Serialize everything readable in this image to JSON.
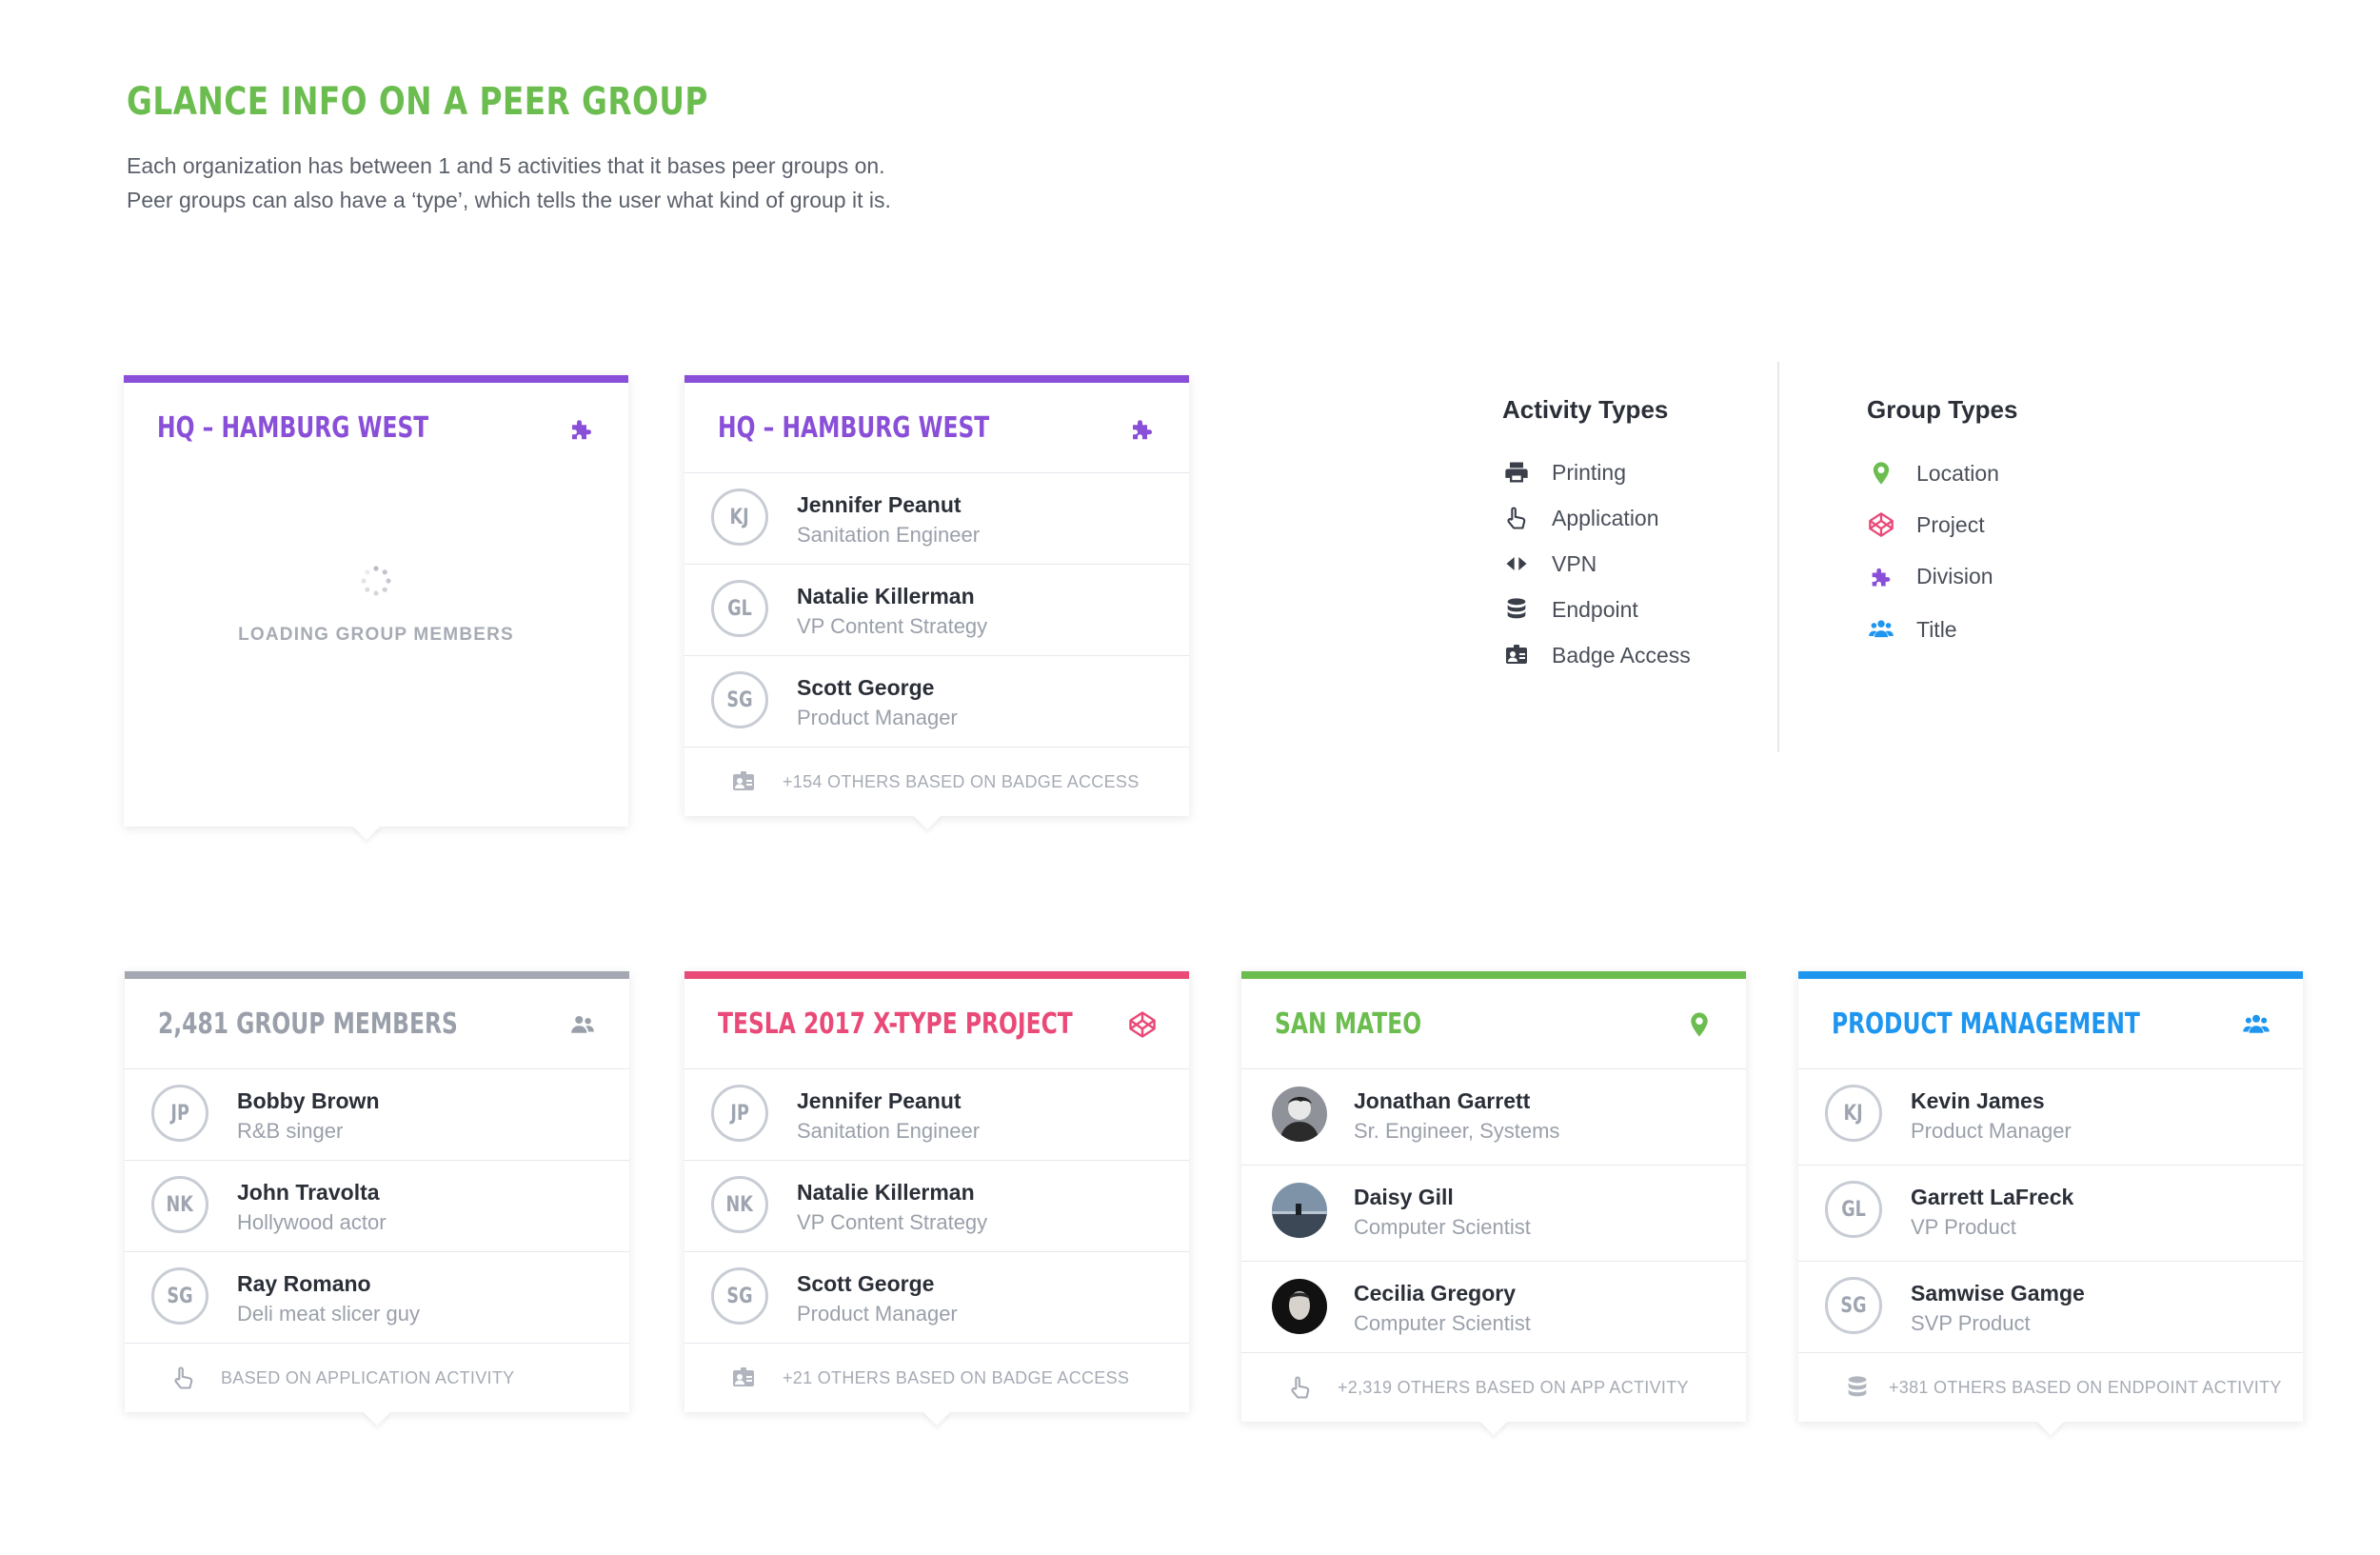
{
  "header": {
    "title": "GLANCE INFO ON A PEER GROUP",
    "intro_line1": "Each organization has between 1 and 5 activities that it bases peer groups on.",
    "intro_line2": "Peer groups can also have a ‘type’, which tells the user what kind of group it is."
  },
  "colors": {
    "green": "#6cbd4f",
    "purple": "#8a4fd8",
    "pink": "#e94a78",
    "blue": "#1e96f0",
    "gray": "#9aa0aa"
  },
  "card1": {
    "title": "HQ – HAMBURG WEST",
    "icon": "puzzle-icon",
    "loading_text": "LOADING GROUP MEMBERS"
  },
  "card2": {
    "title": "HQ – HAMBURG WEST",
    "icon": "puzzle-icon",
    "members": [
      {
        "initials": "KJ",
        "name": "Jennifer Peanut",
        "role": "Sanitation Engineer"
      },
      {
        "initials": "GL",
        "name": "Natalie Killerman",
        "role": "VP Content Strategy"
      },
      {
        "initials": "SG",
        "name": "Scott George",
        "role": "Product Manager"
      }
    ],
    "footer_icon": "badge-icon",
    "footer": "+154 OTHERS BASED ON BADGE ACCESS"
  },
  "card3": {
    "title": "2,481 GROUP MEMBERS",
    "icon": "users-icon",
    "members": [
      {
        "initials": "JP",
        "name": "Bobby Brown",
        "role": "R&B singer"
      },
      {
        "initials": "NK",
        "name": "John Travolta",
        "role": "Hollywood actor"
      },
      {
        "initials": "SG",
        "name": "Ray Romano",
        "role": "Deli meat slicer guy"
      }
    ],
    "footer_icon": "pointer-hand-icon",
    "footer": "BASED ON APPLICATION ACTIVITY"
  },
  "card4": {
    "title": "TESLA 2017 X-TYPE PROJECT",
    "icon": "codepen-icon",
    "members": [
      {
        "initials": "JP",
        "name": "Jennifer Peanut",
        "role": "Sanitation Engineer"
      },
      {
        "initials": "NK",
        "name": "Natalie Killerman",
        "role": "VP Content Strategy"
      },
      {
        "initials": "SG",
        "name": "Scott George",
        "role": "Product Manager"
      }
    ],
    "footer_icon": "badge-icon",
    "footer": "+21 OTHERS BASED ON BADGE ACCESS"
  },
  "card5": {
    "title": "SAN MATEO",
    "icon": "location-pin-icon",
    "members": [
      {
        "name": "Jonathan Garrett",
        "role": "Sr. Engineer, Systems"
      },
      {
        "name": "Daisy Gill",
        "role": "Computer Scientist"
      },
      {
        "name": "Cecilia Gregory",
        "role": "Computer Scientist"
      }
    ],
    "footer_icon": "pointer-hand-icon",
    "footer": "+2,319 OTHERS BASED ON APP ACTIVITY"
  },
  "card6": {
    "title": "PRODUCT MANAGEMENT",
    "icon": "users-icon",
    "members": [
      {
        "initials": "KJ",
        "name": "Kevin James",
        "role": "Product Manager"
      },
      {
        "initials": "GL",
        "name": "Garrett LaFreck",
        "role": "VP Product"
      },
      {
        "initials": "SG",
        "name": "Samwise Gamge",
        "role": "SVP Product"
      }
    ],
    "footer_icon": "database-icon",
    "footer": "+381 OTHERS BASED ON ENDPOINT ACTIVITY"
  },
  "activity_types": {
    "title": "Activity Types",
    "items": [
      {
        "icon": "printer-icon",
        "label": "Printing"
      },
      {
        "icon": "pointer-hand-icon",
        "label": "Application"
      },
      {
        "icon": "code-arrows-icon",
        "label": "VPN"
      },
      {
        "icon": "database-icon",
        "label": "Endpoint"
      },
      {
        "icon": "badge-icon",
        "label": "Badge Access"
      }
    ]
  },
  "group_types": {
    "title": "Group Types",
    "items": [
      {
        "icon": "location-pin-icon",
        "label": "Location"
      },
      {
        "icon": "codepen-icon",
        "label": "Project"
      },
      {
        "icon": "puzzle-icon",
        "label": "Division"
      },
      {
        "icon": "users-icon",
        "label": "Title"
      }
    ]
  }
}
